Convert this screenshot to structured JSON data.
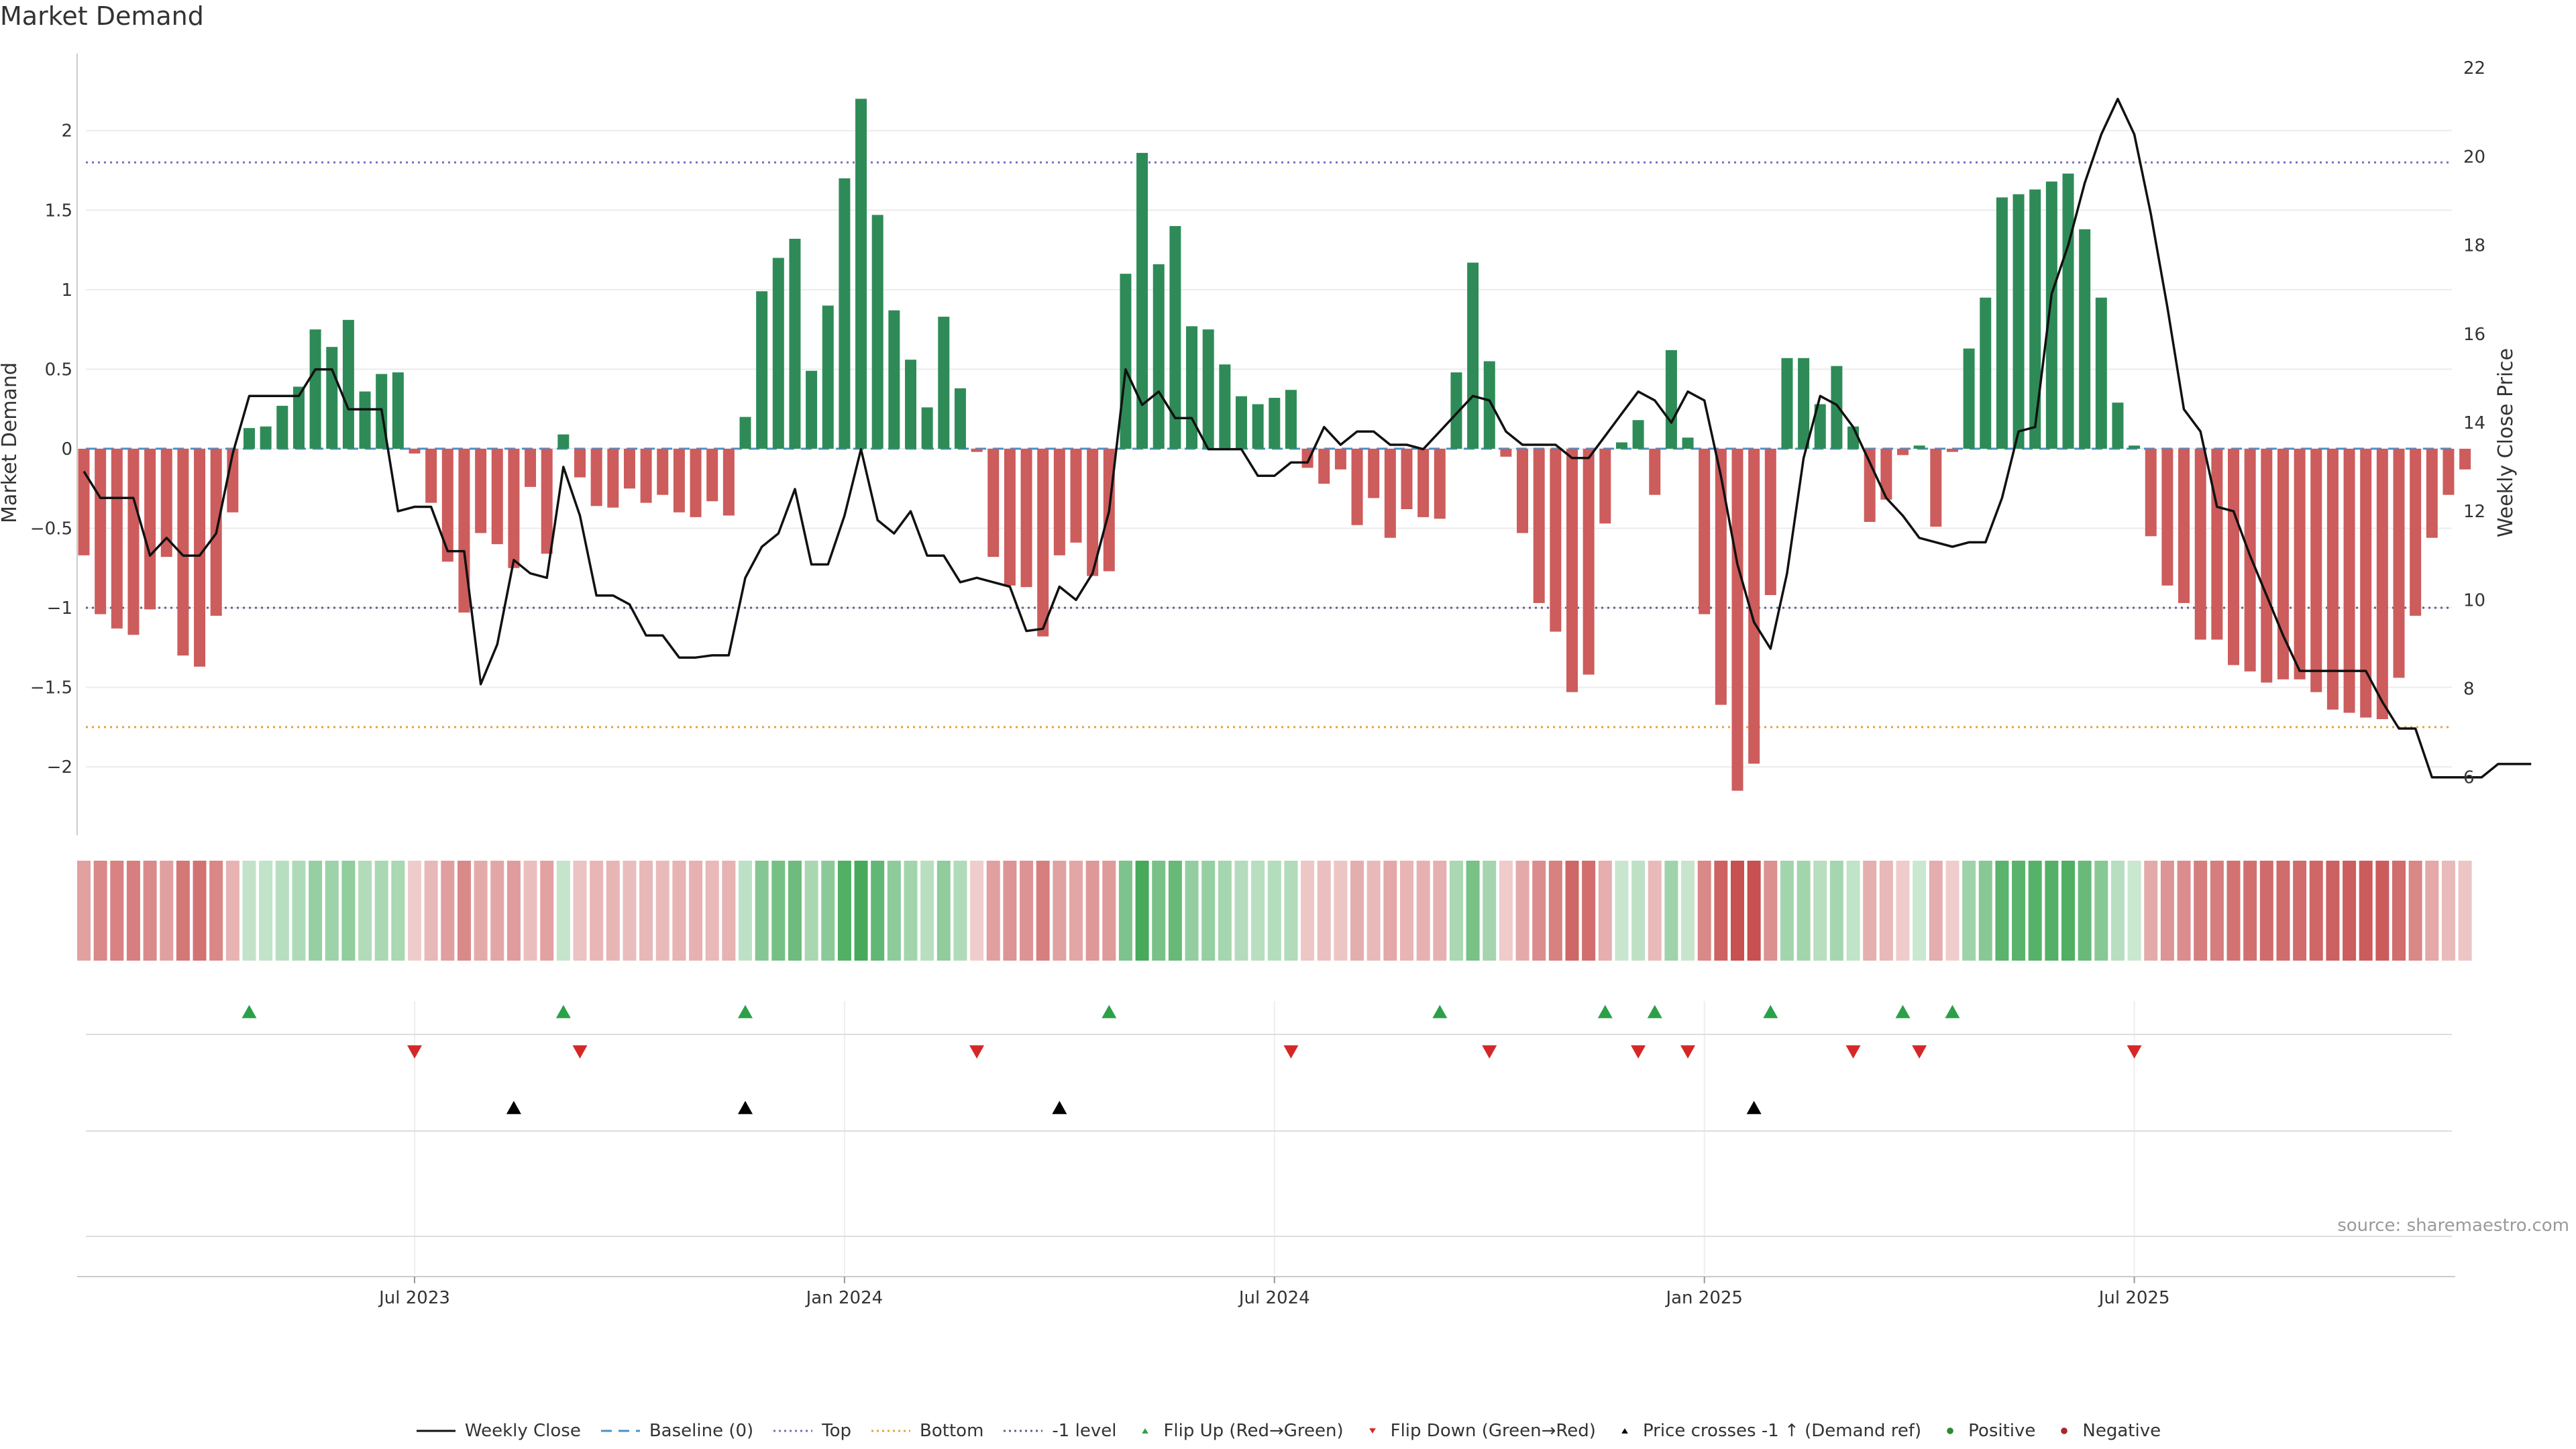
{
  "title": "Market Demand",
  "source": "source: sharemaestro.com",
  "colors": {
    "positive": "#2e8b57",
    "negative": "#cd5c5c",
    "line": "#111111",
    "top": "#7070c0",
    "bottom": "#e8a040",
    "minus1": "#6a5a8a",
    "flip_up": "#2ca048",
    "flip_down": "#d62728",
    "cross": "#000000",
    "baseline": "#4a90c8"
  },
  "chart_data": {
    "type": "bar",
    "title": "Market Demand",
    "ylabel": "Market Demand",
    "y2label": "Weekly Close Price",
    "ylim": [
      -2.4,
      2.45
    ],
    "y2lim": [
      4.8,
      22.2
    ],
    "yticks": [
      -2,
      -1.5,
      -1,
      -0.5,
      0,
      0.5,
      1,
      1.5,
      2
    ],
    "ytick_labels": [
      "−2",
      "−1.5",
      "−1",
      "−0.5",
      "0",
      "0.5",
      "1",
      "1.5",
      "2"
    ],
    "y2ticks": [
      6,
      8,
      10,
      12,
      14,
      16,
      18,
      20,
      22
    ],
    "y2tick_labels": [
      "6",
      "8",
      "10",
      "12",
      "14",
      "16",
      "18",
      "20",
      "22"
    ],
    "x_tick_labels": [
      "Jul 2023",
      "Jan 2024",
      "Jul 2024",
      "Jan 2025",
      "Jul 2025"
    ],
    "x_tick_weeks": [
      20,
      46,
      72,
      98,
      124
    ],
    "reference_lines": {
      "top": 1.8,
      "bottom": -1.75,
      "minus1": -1.0,
      "baseline": 0
    },
    "demand": [
      -0.67,
      -1.04,
      -1.13,
      -1.17,
      -1.01,
      -0.68,
      -1.3,
      -1.37,
      -1.05,
      -0.4,
      0.13,
      0.14,
      0.27,
      0.39,
      0.75,
      0.64,
      0.81,
      0.36,
      0.47,
      0.48,
      -0.03,
      -0.34,
      -0.71,
      -1.03,
      -0.53,
      -0.6,
      -0.75,
      -0.24,
      -0.66,
      0.09,
      -0.18,
      -0.36,
      -0.37,
      -0.25,
      -0.34,
      -0.29,
      -0.4,
      -0.43,
      -0.33,
      -0.42,
      0.2,
      0.99,
      1.2,
      1.32,
      0.49,
      0.9,
      1.7,
      2.2,
      1.47,
      0.87,
      0.56,
      0.26,
      0.83,
      0.38,
      -0.02,
      -0.68,
      -0.86,
      -0.87,
      -1.18,
      -0.67,
      -0.59,
      -0.8,
      -0.77,
      1.1,
      1.86,
      1.16,
      1.4,
      0.77,
      0.75,
      0.53,
      0.33,
      0.28,
      0.32,
      0.37,
      -0.12,
      -0.22,
      -0.13,
      -0.48,
      -0.31,
      -0.56,
      -0.38,
      -0.43,
      -0.44,
      0.48,
      1.17,
      0.55,
      -0.05,
      -0.53,
      -0.97,
      -1.15,
      -1.53,
      -1.42,
      -0.47,
      0.04,
      0.18,
      -0.29,
      0.62,
      0.07,
      -1.04,
      -1.61,
      -2.15,
      -1.98,
      -0.92,
      0.57,
      0.57,
      0.28,
      0.52,
      0.14,
      -0.46,
      -0.32,
      -0.04,
      0.02,
      -0.49,
      -0.02,
      0.63,
      0.95,
      1.58,
      1.6,
      1.63,
      1.68,
      1.73,
      1.38,
      0.95,
      0.29,
      0.02,
      -0.55,
      -0.86,
      -0.97,
      -1.2,
      -1.2,
      -1.36,
      -1.4,
      -1.47,
      -1.45,
      -1.45,
      -1.53,
      -1.64,
      -1.66,
      -1.69,
      -1.7,
      -1.44,
      -1.05,
      -0.56,
      -0.29,
      -0.13
    ],
    "weekly_close": [
      12.9,
      12.3,
      12.3,
      12.3,
      11.0,
      11.4,
      11.0,
      11.0,
      11.5,
      13.3,
      14.6,
      14.6,
      14.6,
      14.6,
      15.2,
      15.2,
      14.3,
      14.3,
      14.3,
      12.0,
      12.1,
      12.1,
      11.1,
      11.1,
      8.1,
      9.0,
      10.9,
      10.6,
      10.5,
      13.0,
      11.9,
      10.1,
      10.1,
      9.9,
      9.2,
      9.2,
      8.7,
      8.7,
      8.75,
      8.75,
      10.5,
      11.2,
      11.5,
      12.5,
      10.8,
      10.8,
      11.9,
      13.4,
      11.8,
      11.5,
      12.0,
      11.0,
      11.0,
      10.4,
      10.5,
      10.4,
      10.3,
      9.3,
      9.35,
      10.3,
      10.0,
      10.6,
      12.0,
      15.2,
      14.4,
      14.7,
      14.1,
      14.1,
      13.4,
      13.4,
      13.4,
      12.8,
      12.8,
      13.1,
      13.1,
      13.9,
      13.5,
      13.8,
      13.8,
      13.5,
      13.5,
      13.4,
      13.8,
      14.2,
      14.6,
      14.5,
      13.8,
      13.5,
      13.5,
      13.5,
      13.2,
      13.2,
      13.7,
      14.2,
      14.7,
      14.5,
      14.0,
      14.7,
      14.5,
      12.8,
      10.8,
      9.5,
      8.9,
      10.6,
      13.2,
      14.6,
      14.4,
      13.9,
      13.1,
      12.3,
      11.9,
      11.4,
      11.3,
      11.2,
      11.3,
      11.3,
      12.3,
      13.8,
      13.9,
      16.9,
      18.0,
      19.4,
      20.5,
      21.3,
      20.5,
      18.7,
      16.6,
      14.3,
      13.8,
      12.1,
      12.0,
      11.0,
      10.1,
      9.2,
      8.4,
      8.4,
      8.4,
      8.4,
      8.4,
      7.7,
      7.1,
      7.1,
      6.0,
      6.0,
      6.0,
      6.0,
      6.3,
      6.3,
      6.3
    ],
    "flip_up": [
      10,
      29,
      40,
      62,
      82,
      92,
      95,
      102,
      110,
      113
    ],
    "flip_down": [
      20,
      30,
      54,
      73,
      85,
      94,
      97,
      107,
      111,
      124
    ],
    "price_crosses": [
      26,
      40,
      59,
      101
    ],
    "legend": [
      "Weekly Close",
      "Baseline (0)",
      "Top",
      "Bottom",
      "-1 level",
      "Flip Up (Red→Green)",
      "Flip Down (Green→Red)",
      "Price crosses -1 ↑ (Demand ref)",
      "Positive",
      "Negative"
    ]
  }
}
